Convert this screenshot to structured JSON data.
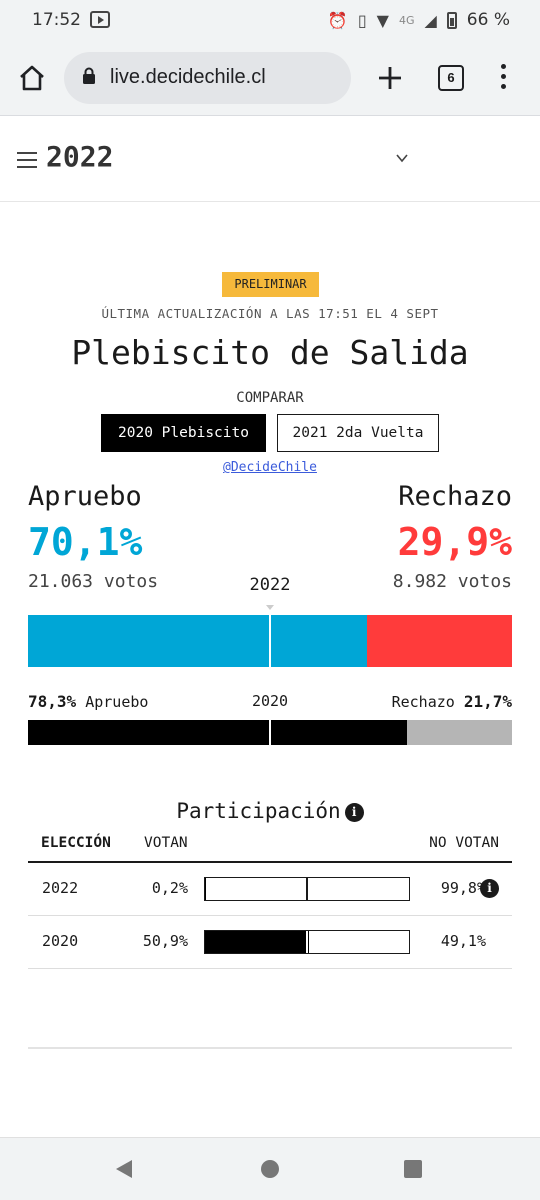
{
  "status_bar": {
    "time": "17:52",
    "network": "4G",
    "battery": "66 %"
  },
  "browser": {
    "url": "live.decidechile.cl",
    "tab_count": "6"
  },
  "year_selector": {
    "label": "2022"
  },
  "header": {
    "badge": "PRELIMINAR",
    "updated": "ÚLTIMA ACTUALIZACIÓN A LAS 17:51 EL 4 SEPT",
    "title": "Plebiscito de Salida",
    "compare_label": "COMPARAR",
    "compare_options": [
      "2020 Plebiscito",
      "2021 2da Vuelta"
    ],
    "handle": "@DecideChile"
  },
  "results": {
    "approve": {
      "name": "Apruebo",
      "pct": "70,1%",
      "votes": "21.063 votos",
      "color": "#00a6d6",
      "fraction": 0.701
    },
    "reject": {
      "name": "Rechazo",
      "pct": "29,9%",
      "votes": "8.982 votos",
      "color": "#ff3b3b"
    },
    "current_year": "2022"
  },
  "previous": {
    "year": "2020",
    "approve_pct": "78,3%",
    "approve_label": "Apruebo",
    "reject_label": "Rechazo",
    "reject_pct": "21,7%",
    "approve_fraction": 0.783
  },
  "participation": {
    "title": "Participación",
    "headers": {
      "election": "ELECCIÓN",
      "vote": "VOTAN",
      "no_vote": "NO VOTAN"
    },
    "rows": [
      {
        "year": "2022",
        "vote": "0,2%",
        "no_vote": "99,8%",
        "vote_fraction": 0.002
      },
      {
        "year": "2020",
        "vote": "50,9%",
        "no_vote": "49,1%",
        "vote_fraction": 0.509
      }
    ]
  },
  "icons": [
    "home-icon",
    "lock-icon",
    "plus-icon",
    "tabs-icon",
    "menu-icon",
    "hamburger-icon",
    "chevron-down-icon",
    "info-icon"
  ]
}
